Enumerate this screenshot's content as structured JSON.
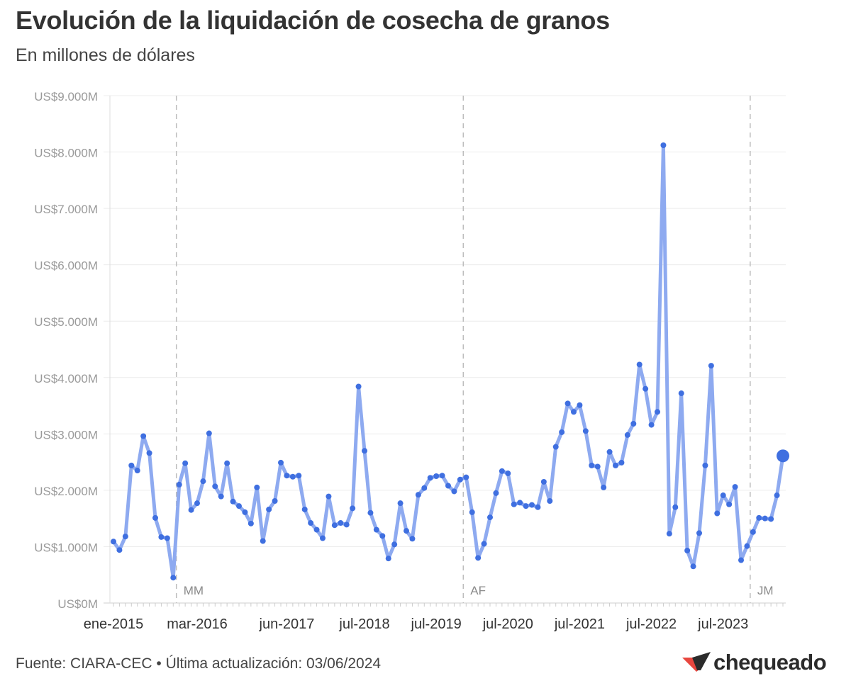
{
  "header": {
    "title": "Evolución de la liquidación de cosecha de granos",
    "subtitle": "En millones de dólares"
  },
  "footer": {
    "source": "Fuente: CIARA-CEC • Última actualización: 03/06/2024"
  },
  "logo": {
    "text": "chequeado",
    "colors": [
      "#e8473f",
      "#2b2b2b"
    ]
  },
  "chart_data": {
    "type": "line",
    "y_ticks": [
      {
        "value": 0,
        "label": "US$0M"
      },
      {
        "value": 1000,
        "label": "US$1.000M"
      },
      {
        "value": 2000,
        "label": "US$2.000M"
      },
      {
        "value": 3000,
        "label": "US$3.000M"
      },
      {
        "value": 4000,
        "label": "US$4.000M"
      },
      {
        "value": 5000,
        "label": "US$5.000M"
      },
      {
        "value": 6000,
        "label": "US$6.000M"
      },
      {
        "value": 7000,
        "label": "US$7.000M"
      },
      {
        "value": 8000,
        "label": "US$8.000M"
      },
      {
        "value": 9000,
        "label": "US$9.000M"
      }
    ],
    "ylim": [
      0,
      9000
    ],
    "x_ticks": [
      {
        "index": 0,
        "label": "ene-2015"
      },
      {
        "index": 14,
        "label": "mar-2016"
      },
      {
        "index": 29,
        "label": "jun-2017"
      },
      {
        "index": 42,
        "label": "jul-2018"
      },
      {
        "index": 54,
        "label": "jul-2019"
      },
      {
        "index": 66,
        "label": "jul-2020"
      },
      {
        "index": 78,
        "label": "jul-2021"
      },
      {
        "index": 90,
        "label": "jul-2022"
      },
      {
        "index": 102,
        "label": "jul-2023"
      }
    ],
    "x_range": [
      "ene-2015",
      "may-2024"
    ],
    "annotations": [
      {
        "index": 11,
        "label": "MM"
      },
      {
        "index": 59,
        "label": "AF"
      },
      {
        "index": 107,
        "label": "JM"
      }
    ],
    "grid": true,
    "line_color": "#8eaaf0",
    "point_color": "#3f6fe0",
    "values": [
      1090,
      940,
      1180,
      2440,
      2350,
      2960,
      2660,
      1510,
      1170,
      1150,
      450,
      2100,
      2480,
      1650,
      1770,
      2160,
      3010,
      2070,
      1890,
      2480,
      1800,
      1720,
      1610,
      1410,
      2050,
      1100,
      1660,
      1810,
      2490,
      2260,
      2240,
      2260,
      1660,
      1420,
      1300,
      1150,
      1890,
      1380,
      1420,
      1390,
      1680,
      3840,
      2700,
      1600,
      1300,
      1190,
      790,
      1040,
      1770,
      1280,
      1140,
      1920,
      2040,
      2220,
      2250,
      2260,
      2080,
      1980,
      2190,
      2230,
      1610,
      800,
      1050,
      1520,
      1950,
      2340,
      2300,
      1750,
      1780,
      1720,
      1740,
      1700,
      2150,
      1810,
      2770,
      3030,
      3540,
      3390,
      3510,
      3050,
      2440,
      2420,
      2050,
      2680,
      2440,
      2490,
      2980,
      3180,
      4230,
      3800,
      3160,
      3390,
      8120,
      1230,
      1700,
      3720,
      930,
      650,
      1240,
      2440,
      4210,
      1590,
      1910,
      1750,
      2060,
      760,
      1010,
      1260,
      1510,
      1500,
      1490,
      1910,
      2610
    ]
  }
}
